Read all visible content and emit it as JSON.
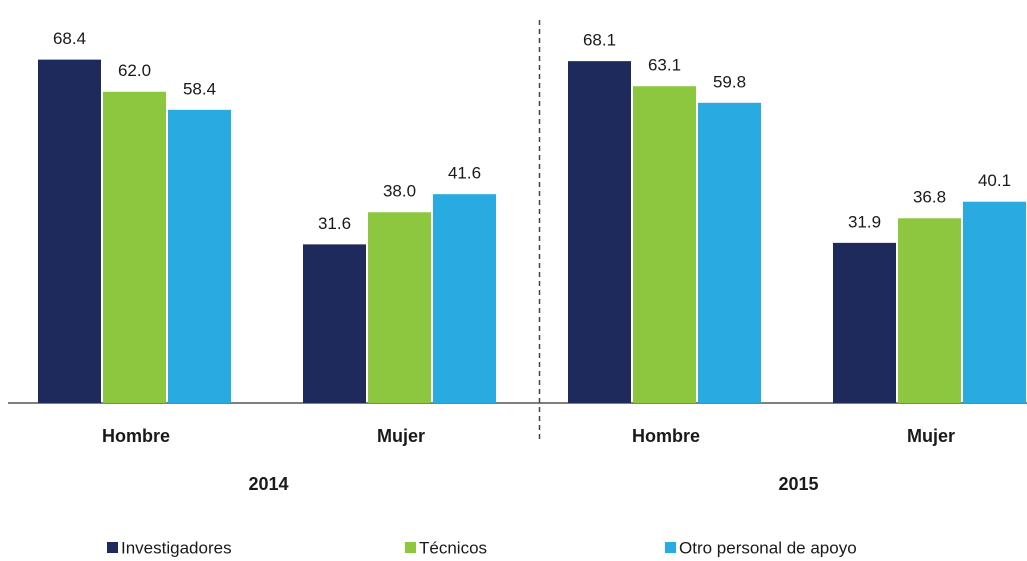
{
  "chart_data": {
    "type": "bar",
    "categories": [
      "Hombre",
      "Mujer",
      "Hombre",
      "Mujer"
    ],
    "groups": [
      "2014",
      "2015"
    ],
    "series": [
      {
        "name": "Investigadores",
        "color": "#1f2a5c",
        "values": [
          68.4,
          31.6,
          68.1,
          31.9
        ]
      },
      {
        "name": "Técnicos",
        "color": "#8dc63f",
        "values": [
          62,
          38,
          63.1,
          36.8
        ],
        "value_labels": [
          "62.0",
          "38.0",
          "63.1",
          "36.8"
        ]
      },
      {
        "name": "Otro personal de apoyo",
        "color": "#29abe2",
        "values": [
          58.4,
          41.6,
          59.8,
          40.1
        ]
      }
    ]
  }
}
